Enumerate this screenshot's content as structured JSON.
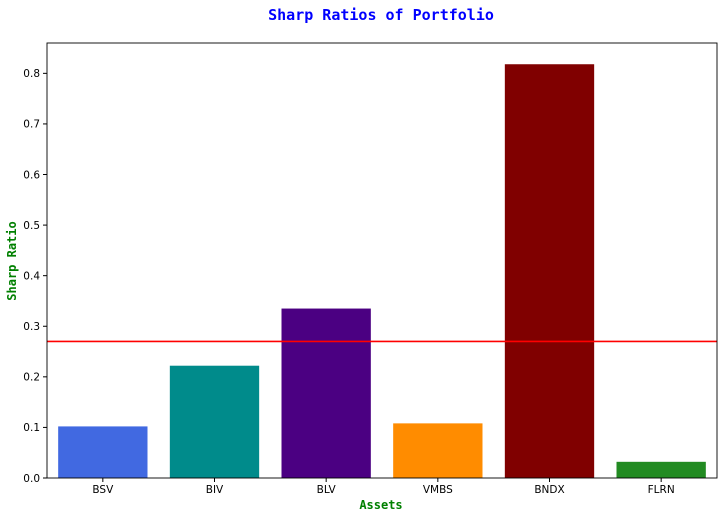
{
  "chart_data": {
    "type": "bar",
    "title": "Sharp Ratios of Portfolio",
    "xlabel": "Assets",
    "ylabel": "Sharp Ratio",
    "categories": [
      "BSV",
      "BIV",
      "BLV",
      "VMBS",
      "BNDX",
      "FLRN"
    ],
    "values": [
      0.102,
      0.222,
      0.335,
      0.108,
      0.818,
      0.032
    ],
    "bar_colors": [
      "#4169e1",
      "#008b8b",
      "#4b0082",
      "#ff8c00",
      "#800000",
      "#228b22"
    ],
    "yticks": [
      "0.0",
      "0.1",
      "0.2",
      "0.3",
      "0.4",
      "0.5",
      "0.6",
      "0.7",
      "0.8"
    ],
    "ylim": [
      0,
      0.86
    ],
    "reference_line": {
      "y": 0.27,
      "color": "#ff0000"
    },
    "grid": false,
    "colors": {
      "title": "#0000ff",
      "axis_labels": "#008000"
    }
  }
}
